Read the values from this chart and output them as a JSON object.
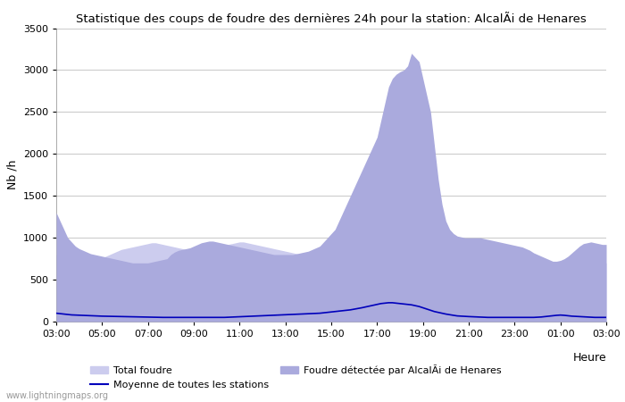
{
  "title": "Statistique des coups de foudre des dernières 24h pour la station: AlcalÃi de Henares",
  "ylabel": "Nb /h",
  "xlabel": "Heure",
  "ylim": [
    0,
    3500
  ],
  "yticks": [
    0,
    500,
    1000,
    1500,
    2000,
    2500,
    3000,
    3500
  ],
  "xtick_labels": [
    "03:00",
    "05:00",
    "07:00",
    "09:00",
    "11:00",
    "13:00",
    "15:00",
    "17:00",
    "19:00",
    "21:00",
    "23:00",
    "01:00",
    "03:00"
  ],
  "fill_color_total": "#ccccee",
  "fill_color_local": "#aaaadd",
  "line_color": "#0000bb",
  "background_color": "#ffffff",
  "grid_color": "#cccccc",
  "watermark": "www.lightningmaps.org",
  "legend": {
    "total_foudre": "Total foudre",
    "moyenne": "Moyenne de toutes les stations",
    "local": "Foudre détectée par AlcalÃi de Henares"
  },
  "total_foudre": [
    800,
    780,
    760,
    750,
    740,
    730,
    720,
    710,
    700,
    700,
    720,
    740,
    760,
    780,
    800,
    820,
    840,
    860,
    870,
    880,
    890,
    900,
    910,
    920,
    930,
    940,
    940,
    930,
    920,
    910,
    900,
    890,
    880,
    870,
    860,
    850,
    840,
    830,
    820,
    820,
    830,
    840,
    860,
    880,
    900,
    920,
    930,
    940,
    950,
    950,
    940,
    930,
    920,
    910,
    900,
    890,
    880,
    870,
    860,
    850,
    840,
    830,
    820,
    810,
    800,
    790,
    780,
    770,
    760,
    750,
    740,
    730,
    720,
    710,
    700,
    700,
    700,
    700,
    700,
    700,
    700,
    700,
    700,
    700,
    700,
    700,
    700,
    700,
    700,
    700,
    700,
    700,
    700,
    700,
    700,
    700,
    700,
    700,
    700,
    700,
    700,
    700,
    700,
    700,
    700,
    700,
    700,
    700,
    700,
    700,
    700,
    700,
    700,
    700,
    700,
    700,
    700,
    700,
    700,
    700,
    700,
    700,
    700,
    700,
    700,
    700,
    700,
    700,
    700,
    700,
    700,
    700,
    700,
    700,
    700,
    700,
    700,
    700,
    700,
    700,
    700,
    700,
    700,
    700,
    700
  ],
  "local_foudre": [
    1300,
    1200,
    1100,
    1000,
    950,
    900,
    870,
    850,
    830,
    810,
    800,
    790,
    780,
    770,
    760,
    750,
    740,
    730,
    720,
    710,
    700,
    700,
    700,
    700,
    700,
    710,
    720,
    730,
    740,
    750,
    800,
    830,
    850,
    860,
    870,
    880,
    900,
    920,
    940,
    950,
    960,
    960,
    950,
    940,
    930,
    920,
    910,
    900,
    890,
    880,
    870,
    860,
    850,
    840,
    830,
    820,
    810,
    800,
    800,
    800,
    800,
    800,
    800,
    810,
    820,
    830,
    840,
    860,
    880,
    900,
    950,
    1000,
    1050,
    1100,
    1200,
    1300,
    1400,
    1500,
    1600,
    1700,
    1800,
    1900,
    2000,
    2100,
    2200,
    2400,
    2600,
    2800,
    2900,
    2950,
    2980,
    3000,
    3050,
    3200,
    3150,
    3100,
    2900,
    2700,
    2500,
    2100,
    1700,
    1400,
    1200,
    1100,
    1050,
    1020,
    1010,
    1000,
    1000,
    1000,
    1000,
    1000,
    990,
    980,
    970,
    960,
    950,
    940,
    930,
    920,
    910,
    900,
    890,
    870,
    850,
    820,
    800,
    780,
    760,
    740,
    720,
    720,
    730,
    750,
    780,
    820,
    860,
    900,
    930,
    940,
    950,
    940,
    930,
    920,
    920
  ],
  "moyenne": [
    100,
    95,
    90,
    85,
    80,
    78,
    76,
    74,
    72,
    70,
    68,
    66,
    65,
    64,
    63,
    62,
    61,
    60,
    59,
    58,
    57,
    56,
    55,
    54,
    53,
    52,
    51,
    50,
    50,
    50,
    50,
    50,
    50,
    50,
    50,
    50,
    50,
    50,
    50,
    50,
    50,
    50,
    50,
    50,
    50,
    52,
    54,
    56,
    58,
    60,
    62,
    64,
    66,
    68,
    70,
    72,
    74,
    76,
    78,
    80,
    82,
    84,
    86,
    88,
    90,
    92,
    94,
    96,
    98,
    100,
    105,
    110,
    115,
    120,
    125,
    130,
    135,
    140,
    148,
    155,
    165,
    175,
    185,
    195,
    205,
    215,
    220,
    225,
    225,
    220,
    215,
    210,
    205,
    200,
    190,
    180,
    165,
    150,
    135,
    120,
    110,
    100,
    90,
    82,
    75,
    68,
    65,
    62,
    60,
    58,
    56,
    54,
    52,
    50,
    50,
    50,
    50,
    50,
    50,
    50,
    50,
    50,
    50,
    50,
    50,
    50,
    52,
    55,
    60,
    65,
    70,
    75,
    78,
    75,
    70,
    65,
    62,
    60,
    58,
    55,
    52,
    50,
    50,
    50,
    50
  ]
}
